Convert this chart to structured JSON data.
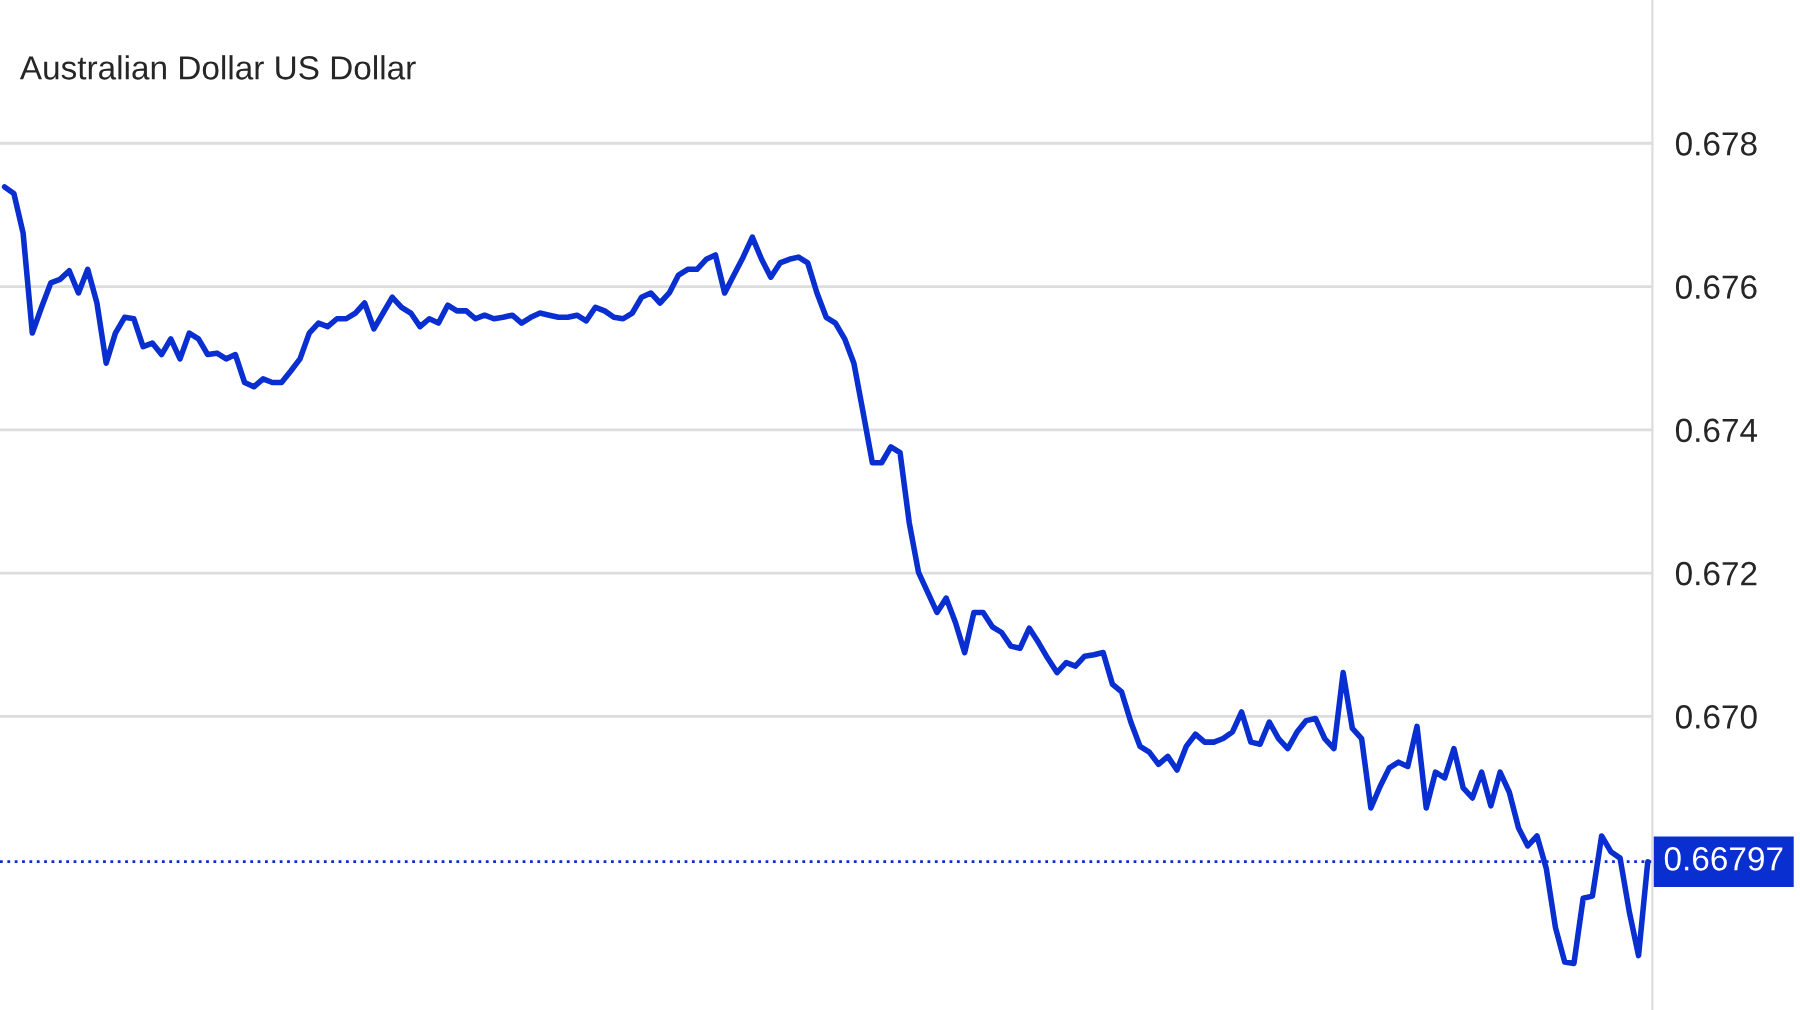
{
  "chart_data": {
    "type": "line",
    "title": "Australian Dollar US Dollar",
    "series": [
      {
        "color": "#0a2fd0",
        "values": [
          0.67739,
          0.6773,
          0.67675,
          0.67535,
          0.67571,
          0.67605,
          0.6761,
          0.67622,
          0.67591,
          0.67624,
          0.67577,
          0.67493,
          0.67535,
          0.67557,
          0.67555,
          0.67516,
          0.67521,
          0.67505,
          0.67527,
          0.67499,
          0.67535,
          0.67527,
          0.67505,
          0.67507,
          0.67499,
          0.67505,
          0.67466,
          0.6746,
          0.67471,
          0.67466,
          0.67466,
          0.67482,
          0.67499,
          0.67535,
          0.67549,
          0.67544,
          0.67555,
          0.67555,
          0.67563,
          0.67577,
          0.67541,
          0.67563,
          0.67585,
          0.67571,
          0.67563,
          0.67544,
          0.67555,
          0.67549,
          0.67574,
          0.67566,
          0.67566,
          0.67555,
          0.6756,
          0.67555,
          0.67557,
          0.6756,
          0.67549,
          0.67557,
          0.67563,
          0.6756,
          0.67557,
          0.67557,
          0.6756,
          0.67552,
          0.67571,
          0.67566,
          0.67557,
          0.67555,
          0.67563,
          0.67585,
          0.67591,
          0.67577,
          0.67591,
          0.67616,
          0.67624,
          0.67624,
          0.67638,
          0.67644,
          0.67591,
          0.67616,
          0.67641,
          0.67669,
          0.67638,
          0.67613,
          0.67633,
          0.67638,
          0.67641,
          0.67633,
          0.67591,
          0.67557,
          0.67549,
          0.67527,
          0.67493,
          0.67424,
          0.67354,
          0.67354,
          0.67376,
          0.67368,
          0.6727,
          0.67201,
          0.67173,
          0.67145,
          0.67165,
          0.67131,
          0.67089,
          0.67145,
          0.67145,
          0.67125,
          0.67117,
          0.67098,
          0.67095,
          0.67123,
          0.67103,
          0.67081,
          0.67061,
          0.67075,
          0.6707,
          0.67084,
          0.67086,
          0.67089,
          0.67045,
          0.67034,
          0.66992,
          0.66958,
          0.6695,
          0.66933,
          0.66944,
          0.66925,
          0.66958,
          0.66975,
          0.66964,
          0.66964,
          0.66969,
          0.66978,
          0.67006,
          0.66964,
          0.66961,
          0.66992,
          0.66969,
          0.66955,
          0.66978,
          0.66994,
          0.66997,
          0.66969,
          0.66955,
          0.67061,
          0.66983,
          0.66969,
          0.66872,
          0.66902,
          0.66928,
          0.66936,
          0.6693,
          0.66986,
          0.66872,
          0.66922,
          0.66914,
          0.66955,
          0.669,
          0.66886,
          0.66922,
          0.66875,
          0.66922,
          0.66894,
          0.66844,
          0.66819,
          0.66833,
          0.66788,
          0.66705,
          0.66657,
          0.66655,
          0.66746,
          0.66749,
          0.66833,
          0.66811,
          0.66802,
          0.66727,
          0.66666,
          0.66797
        ]
      }
    ],
    "categories": [
      null,
      null,
      null,
      null,
      null,
      null,
      null,
      null,
      null,
      null,
      null,
      null,
      null,
      null,
      null,
      null,
      null,
      null,
      null,
      null,
      null,
      null,
      null,
      null,
      null,
      null,
      null,
      null,
      null,
      null,
      null,
      null,
      null,
      null,
      null,
      null,
      null,
      null,
      null,
      null,
      null,
      null,
      null,
      null,
      null,
      null,
      null,
      null,
      null,
      null,
      null,
      null,
      null,
      null,
      null,
      null,
      null,
      null,
      null,
      null,
      null,
      null,
      null,
      null,
      null,
      null,
      null,
      null,
      null,
      null,
      null,
      null,
      null,
      null,
      null,
      null,
      null,
      null,
      null,
      null,
      null,
      null,
      null,
      null,
      null,
      null,
      null,
      null,
      null,
      null,
      null,
      null,
      null,
      null,
      null,
      null,
      null,
      null,
      null,
      null,
      null,
      null,
      null,
      null,
      null,
      null,
      null,
      null,
      null,
      null,
      null,
      null,
      null,
      null,
      null,
      null,
      null,
      null,
      null,
      null,
      null,
      null,
      null,
      null,
      null,
      null,
      null,
      null,
      null,
      null,
      null,
      null,
      null,
      null,
      null,
      null,
      null,
      null,
      null,
      null,
      null,
      null,
      null,
      null,
      null,
      null,
      null,
      null,
      null,
      null,
      null,
      null,
      null,
      null,
      null,
      null,
      null,
      null,
      null,
      null,
      null,
      null,
      null,
      null,
      null,
      null,
      null,
      null,
      null,
      null,
      null,
      null,
      null,
      null,
      null,
      null,
      null,
      null,
      null
    ],
    "ylim": [
      0.6659,
      0.68
    ],
    "yticks": [
      {
        "value": 0.67,
        "label": "0.670"
      },
      {
        "value": 0.672,
        "label": "0.672"
      },
      {
        "value": 0.674,
        "label": "0.674"
      },
      {
        "value": 0.676,
        "label": "0.676"
      },
      {
        "value": 0.678,
        "label": "0.678"
      }
    ],
    "tick_labels": "y",
    "grid": "y",
    "line_style": "solid",
    "ref_lines": [
      {
        "axis": "y",
        "value": 0.66797,
        "label": "0.66797",
        "color": "#0a2fd0",
        "line_style": "dotted"
      }
    ]
  }
}
